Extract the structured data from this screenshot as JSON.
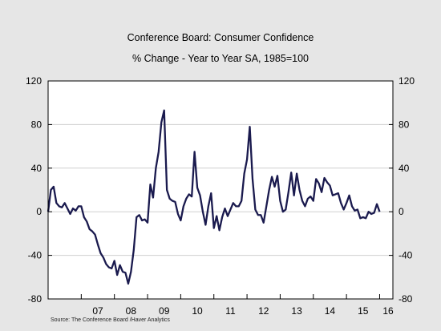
{
  "chart_data": {
    "type": "line",
    "title": "Conference Board: Consumer Confidence",
    "subtitle": "% Change - Year to Year    SA, 1985=100",
    "source": "Source:  The Conference Board /Haver Analytics",
    "ylim": [
      -80,
      120
    ],
    "yticks": [
      120,
      80,
      40,
      0,
      -40,
      -80
    ],
    "ytick_labels": [
      "120",
      "80",
      "40",
      "0",
      "-40",
      "-80"
    ],
    "xlim": [
      2006.0,
      2016.4
    ],
    "xtick_labels": [
      {
        "label": "07",
        "pos": 2007.5
      },
      {
        "label": "08",
        "pos": 2008.5
      },
      {
        "label": "09",
        "pos": 2009.5
      },
      {
        "label": "10",
        "pos": 2010.5
      },
      {
        "label": "11",
        "pos": 2011.5
      },
      {
        "label": "12",
        "pos": 2012.5
      },
      {
        "label": "13",
        "pos": 2013.5
      },
      {
        "label": "14",
        "pos": 2014.5
      },
      {
        "label": "15",
        "pos": 2015.5
      },
      {
        "label": "16",
        "pos": 2016.5
      }
    ],
    "grid": true,
    "line_color": "#1a1a4e",
    "series": [
      {
        "start": 2006.0,
        "step_months": 1,
        "values": [
          0,
          20,
          23,
          8,
          5,
          4,
          8,
          3,
          -2,
          3,
          1,
          5,
          5,
          -5,
          -9,
          -16,
          -18,
          -21,
          -30,
          -38,
          -42,
          -48,
          -51,
          -52,
          -45,
          -58,
          -49,
          -55,
          -56,
          -66,
          -55,
          -35,
          -5,
          -3,
          -8,
          -7,
          -10,
          25,
          13,
          40,
          55,
          82,
          93,
          20,
          12,
          10,
          9,
          -2,
          -8,
          5,
          12,
          16,
          14,
          55,
          22,
          15,
          0,
          -12,
          5,
          17,
          -15,
          -4,
          -17,
          -5,
          3,
          -4,
          2,
          8,
          5,
          5,
          10,
          35,
          48,
          78,
          30,
          2,
          -3,
          -3,
          -10,
          5,
          20,
          32,
          23,
          33,
          10,
          0,
          2,
          18,
          36,
          15,
          35,
          20,
          10,
          5,
          12,
          14,
          10,
          30,
          26,
          18,
          31,
          27,
          24,
          15,
          16,
          17,
          8,
          2,
          8,
          15,
          5,
          1,
          2,
          -6,
          -5,
          -6,
          0,
          -2,
          -1,
          7,
          0
        ]
      }
    ]
  }
}
